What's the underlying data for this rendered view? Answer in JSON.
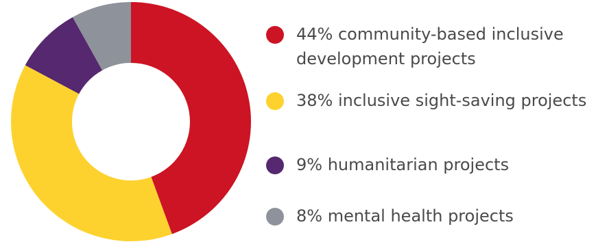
{
  "chart_data": {
    "type": "pie",
    "variant": "donut",
    "categories": [
      "community-based inclusive development projects",
      "inclusive sight-saving projects",
      "humanitarian projects",
      "mental health projects"
    ],
    "values": [
      44,
      38,
      9,
      8
    ],
    "unit": "%",
    "colors": [
      "#cc1424",
      "#fdd22f",
      "#56286f",
      "#8e929a"
    ],
    "title": "",
    "legend_placement": "right"
  },
  "legend": {
    "items": [
      {
        "label": "44% community-based inclusive development projects",
        "color": "#cc1424"
      },
      {
        "label": "38% inclusive sight-saving projects",
        "color": "#fdd22f"
      },
      {
        "label": "9% humanitarian projects",
        "color": "#56286f"
      },
      {
        "label": "8% mental health projects",
        "color": "#8e929a"
      }
    ]
  }
}
